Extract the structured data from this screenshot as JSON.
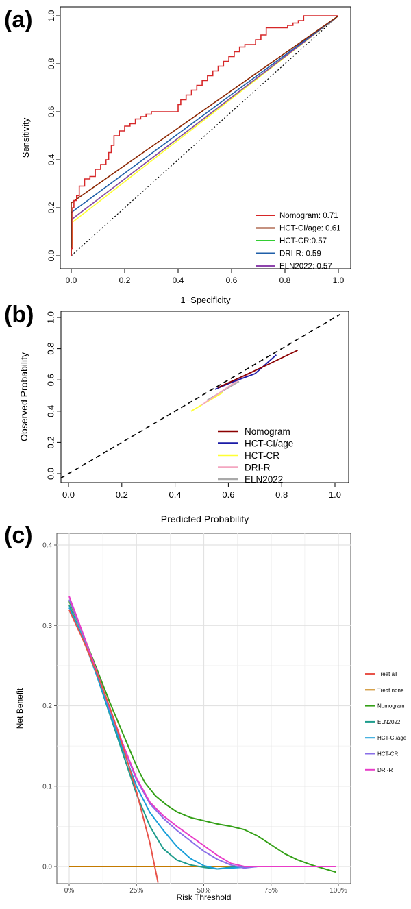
{
  "chart_data": [
    {
      "panel": "(a)",
      "type": "line",
      "xlabel": "1−Specificity",
      "ylabel": "Sensitivity",
      "xlim": [
        0,
        1
      ],
      "ylim": [
        0,
        1
      ],
      "xticks": [
        "0.0",
        "0.2",
        "0.4",
        "0.6",
        "0.8",
        "1.0"
      ],
      "yticks": [
        "0.0",
        "0.2",
        "0.4",
        "0.6",
        "0.8",
        "1.0"
      ],
      "legend_position": "bottom-right",
      "diagonal": "dotted",
      "series": [
        {
          "name": "Nomogram: 0.71",
          "color": "#d62728",
          "x": [
            0,
            0,
            0.005,
            0.005,
            0.01,
            0.01,
            0.02,
            0.02,
            0.03,
            0.03,
            0.05,
            0.05,
            0.07,
            0.07,
            0.09,
            0.09,
            0.11,
            0.11,
            0.13,
            0.13,
            0.14,
            0.14,
            0.15,
            0.15,
            0.16,
            0.16,
            0.18,
            0.18,
            0.2,
            0.2,
            0.22,
            0.22,
            0.24,
            0.24,
            0.26,
            0.26,
            0.28,
            0.28,
            0.3,
            0.3,
            0.31,
            0.31,
            0.4,
            0.4,
            0.41,
            0.41,
            0.43,
            0.43,
            0.45,
            0.45,
            0.47,
            0.47,
            0.49,
            0.49,
            0.51,
            0.51,
            0.53,
            0.53,
            0.55,
            0.55,
            0.57,
            0.57,
            0.59,
            0.59,
            0.61,
            0.61,
            0.63,
            0.63,
            0.65,
            0.65,
            0.67,
            0.67,
            0.69,
            0.69,
            0.71,
            0.71,
            0.73,
            0.73,
            0.81,
            0.81,
            0.83,
            0.83,
            0.85,
            0.85,
            0.87,
            0.87,
            0.9,
            0.9,
            1
          ],
          "y": [
            0,
            0.03,
            0.03,
            0.2,
            0.2,
            0.23,
            0.23,
            0.25,
            0.25,
            0.29,
            0.29,
            0.32,
            0.32,
            0.33,
            0.33,
            0.36,
            0.36,
            0.38,
            0.38,
            0.4,
            0.4,
            0.43,
            0.43,
            0.46,
            0.46,
            0.5,
            0.5,
            0.52,
            0.52,
            0.54,
            0.54,
            0.55,
            0.55,
            0.57,
            0.57,
            0.58,
            0.58,
            0.59,
            0.59,
            0.6,
            0.6,
            0.6,
            0.6,
            0.63,
            0.63,
            0.65,
            0.65,
            0.67,
            0.67,
            0.69,
            0.69,
            0.71,
            0.71,
            0.73,
            0.73,
            0.75,
            0.75,
            0.77,
            0.77,
            0.79,
            0.79,
            0.81,
            0.81,
            0.83,
            0.83,
            0.85,
            0.85,
            0.87,
            0.87,
            0.88,
            0.88,
            0.88,
            0.88,
            0.9,
            0.9,
            0.92,
            0.92,
            0.95,
            0.95,
            0.96,
            0.96,
            0.97,
            0.97,
            0.98,
            0.98,
            1.0,
            1.0,
            1.0,
            1.0
          ]
        },
        {
          "name": "HCT-CI/age: 0.61",
          "color": "#8b2500",
          "x": [
            0,
            0,
            1
          ],
          "y": [
            0,
            0.22,
            1
          ]
        },
        {
          "name": "HCT-CR:0.57",
          "color": "#32cd32",
          "x": [
            0,
            0,
            1
          ],
          "y": [
            0,
            0.15,
            1
          ]
        },
        {
          "name": "DRI-R: 0.59",
          "color": "#1f5fa8",
          "x": [
            0,
            0,
            1
          ],
          "y": [
            0,
            0.18,
            1
          ]
        },
        {
          "name": "ELN2022: 0.57",
          "color": "#8e44ad",
          "x": [
            0,
            0,
            1
          ],
          "y": [
            0,
            0.15,
            1
          ]
        },
        {
          "name": "",
          "color": "#ffff33",
          "x": [
            0,
            0.005,
            1
          ],
          "y": [
            0,
            0.14,
            1
          ]
        }
      ]
    },
    {
      "panel": "(b)",
      "type": "line",
      "xlabel": "Predicted Probability",
      "ylabel": "Observed Probability",
      "xlim": [
        0,
        1
      ],
      "ylim": [
        0,
        1
      ],
      "xticks": [
        "0.0",
        "0.2",
        "0.4",
        "0.6",
        "0.8",
        "1.0"
      ],
      "yticks": [
        "0.0",
        "0.2",
        "0.4",
        "0.6",
        "0.8",
        "1.0"
      ],
      "legend_position": "bottom-right",
      "diagonal": "dashed",
      "series": [
        {
          "name": "Nomogram",
          "color": "#8b0000",
          "x": [
            0.56,
            0.65,
            0.75,
            0.86
          ],
          "y": [
            0.55,
            0.62,
            0.7,
            0.79
          ]
        },
        {
          "name": "HCT-CI/age",
          "color": "#1a1aa6",
          "x": [
            0.55,
            0.62,
            0.7,
            0.78
          ],
          "y": [
            0.54,
            0.59,
            0.64,
            0.76
          ]
        },
        {
          "name": "HCT-CR",
          "color": "#ffff33",
          "x": [
            0.46,
            0.52,
            0.58
          ],
          "y": [
            0.4,
            0.46,
            0.52
          ]
        },
        {
          "name": "DRI-R",
          "color": "#f4a6c0",
          "x": [
            0.5,
            0.56,
            0.62,
            0.7
          ],
          "y": [
            0.44,
            0.51,
            0.58,
            0.66
          ]
        },
        {
          "name": "ELN2022",
          "color": "#a9a9a9",
          "x": [
            0.52,
            0.58,
            0.64
          ],
          "y": [
            0.47,
            0.53,
            0.59
          ]
        }
      ]
    },
    {
      "panel": "(c)",
      "type": "line",
      "xlabel": "Risk Threshold",
      "ylabel": "Net Benefit",
      "xlim": [
        0,
        1
      ],
      "ylim": [
        -0.005,
        0.4
      ],
      "xticks": [
        "0%",
        "25%",
        "50%",
        "75%",
        "100%"
      ],
      "yticks": [
        "0.0",
        "0.1",
        "0.2",
        "0.3",
        "0.4"
      ],
      "grid": true,
      "legend_position": "right",
      "series": [
        {
          "name": "Treat all",
          "color": "#e8534a",
          "x": [
            0,
            0.05,
            0.1,
            0.15,
            0.2,
            0.25,
            0.3,
            0.33
          ],
          "y": [
            0.319,
            0.283,
            0.243,
            0.199,
            0.149,
            0.093,
            0.029,
            -0.02
          ]
        },
        {
          "name": "Treat none",
          "color": "#c47a00",
          "x": [
            0,
            0.99
          ],
          "y": [
            0,
            0
          ]
        },
        {
          "name": "Nomogram",
          "color": "#34a017",
          "x": [
            0,
            0.05,
            0.1,
            0.15,
            0.2,
            0.25,
            0.28,
            0.32,
            0.36,
            0.4,
            0.45,
            0.5,
            0.55,
            0.6,
            0.65,
            0.7,
            0.75,
            0.8,
            0.85,
            0.9,
            0.95,
            0.99
          ],
          "y": [
            0.33,
            0.29,
            0.248,
            0.205,
            0.165,
            0.125,
            0.105,
            0.088,
            0.077,
            0.068,
            0.061,
            0.057,
            0.053,
            0.05,
            0.046,
            0.038,
            0.027,
            0.016,
            0.008,
            0.002,
            -0.003,
            -0.007
          ]
        },
        {
          "name": "ELN2022",
          "color": "#1e9c8c",
          "x": [
            0,
            0.05,
            0.1,
            0.15,
            0.2,
            0.25,
            0.3,
            0.35,
            0.4,
            0.45,
            0.5,
            0.55,
            0.6,
            0.7,
            0.8,
            0.9,
            0.99
          ],
          "y": [
            0.325,
            0.285,
            0.24,
            0.19,
            0.14,
            0.09,
            0.05,
            0.022,
            0.008,
            0.002,
            -0.001,
            -0.003,
            -0.001,
            0,
            0,
            0,
            0
          ]
        },
        {
          "name": "HCT-CI/age",
          "color": "#1a9fd9",
          "x": [
            0,
            0.05,
            0.1,
            0.15,
            0.2,
            0.25,
            0.3,
            0.35,
            0.4,
            0.45,
            0.5,
            0.55,
            0.6,
            0.7,
            0.8,
            0.9,
            0.99
          ],
          "y": [
            0.322,
            0.285,
            0.24,
            0.192,
            0.145,
            0.1,
            0.067,
            0.045,
            0.025,
            0.01,
            0.001,
            -0.003,
            -0.002,
            0,
            0,
            0,
            0
          ]
        },
        {
          "name": "HCT-CR",
          "color": "#8a6fe8",
          "x": [
            0,
            0.05,
            0.1,
            0.15,
            0.2,
            0.25,
            0.3,
            0.35,
            0.4,
            0.45,
            0.5,
            0.55,
            0.6,
            0.65,
            0.7,
            0.8,
            0.9,
            0.99
          ],
          "y": [
            0.332,
            0.29,
            0.245,
            0.196,
            0.15,
            0.108,
            0.078,
            0.06,
            0.045,
            0.032,
            0.019,
            0.009,
            0.002,
            -0.002,
            0,
            0,
            0,
            0
          ]
        },
        {
          "name": "DRI-R",
          "color": "#e83cc8",
          "x": [
            0,
            0.05,
            0.1,
            0.15,
            0.2,
            0.25,
            0.3,
            0.35,
            0.4,
            0.45,
            0.5,
            0.55,
            0.6,
            0.65,
            0.7,
            0.8,
            0.9,
            0.99
          ],
          "y": [
            0.336,
            0.291,
            0.245,
            0.198,
            0.152,
            0.11,
            0.08,
            0.063,
            0.05,
            0.038,
            0.026,
            0.014,
            0.004,
            0,
            0,
            0,
            0,
            0
          ]
        }
      ]
    }
  ]
}
